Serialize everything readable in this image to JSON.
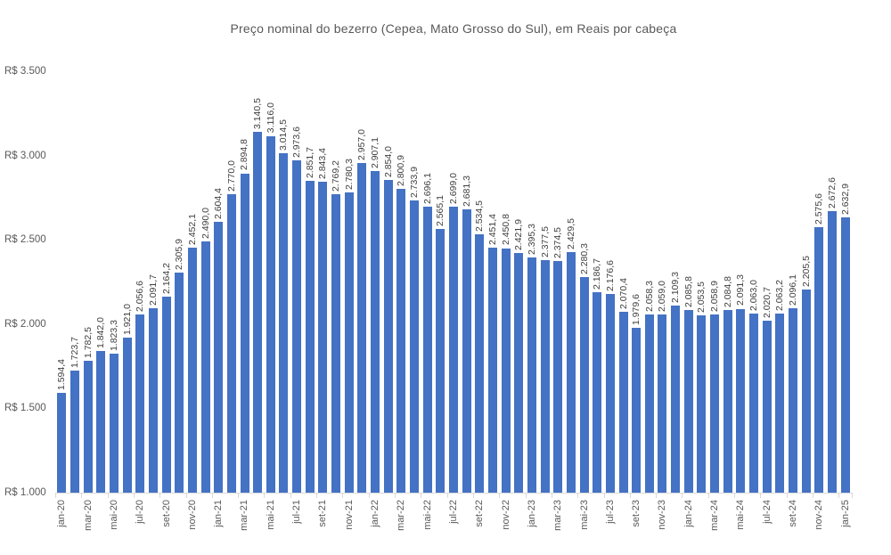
{
  "colors": {
    "bar": "#4472C4",
    "title_text": "#595959",
    "axis_text": "#595959",
    "data_label_text": "#404040",
    "axis_line": "#D9D9D9",
    "background": "#ffffff"
  },
  "chart_data": {
    "type": "bar",
    "title": "Preço nominal do bezerro (Cepea, Mato Grosso do Sul), em Reais por cabeça",
    "xlabel": "",
    "ylabel": "",
    "ylim": [
      1000,
      3500
    ],
    "grid": false,
    "legend": false,
    "x_label_interval": 2,
    "y_axis": [
      {
        "value": 3500,
        "label": "R$ 3.500"
      },
      {
        "value": 3000,
        "label": "R$ 3.000"
      },
      {
        "value": 2500,
        "label": "R$ 2.500"
      },
      {
        "value": 2000,
        "label": "R$ 2.000"
      },
      {
        "value": 1500,
        "label": "R$ 1.500"
      },
      {
        "value": 1000,
        "label": "R$ 1.000"
      }
    ],
    "categories": [
      "jan-20",
      "fev-20",
      "mar-20",
      "abr-20",
      "mai-20",
      "jun-20",
      "jul-20",
      "ago-20",
      "set-20",
      "out-20",
      "nov-20",
      "dez-20",
      "jan-21",
      "fev-21",
      "mar-21",
      "abr-21",
      "mai-21",
      "jun-21",
      "jul-21",
      "ago-21",
      "set-21",
      "out-21",
      "nov-21",
      "dez-21",
      "jan-22",
      "fev-22",
      "mar-22",
      "abr-22",
      "mai-22",
      "jun-22",
      "jul-22",
      "ago-22",
      "set-22",
      "out-22",
      "nov-22",
      "dez-22",
      "jan-23",
      "fev-23",
      "mar-23",
      "abr-23",
      "mai-23",
      "jun-23",
      "jul-23",
      "ago-23",
      "set-23",
      "out-23",
      "nov-23",
      "dez-23",
      "jan-24",
      "fev-24",
      "mar-24",
      "abr-24",
      "mai-24",
      "jun-24",
      "jul-24",
      "ago-24",
      "set-24",
      "out-24",
      "nov-24",
      "dez-24",
      "jan-25"
    ],
    "values": [
      1594.4,
      1723.7,
      1782.5,
      1842.0,
      1823.3,
      1921.0,
      2056.6,
      2091.7,
      2164.2,
      2305.9,
      2452.1,
      2490.0,
      2604.4,
      2770.0,
      2894.8,
      3140.5,
      3116.0,
      3014.5,
      2973.6,
      2851.7,
      2843.4,
      2769.2,
      2780.3,
      2957.0,
      2907.1,
      2854.0,
      2800.9,
      2733.9,
      2696.1,
      2565.1,
      2699.0,
      2681.3,
      2534.5,
      2451.4,
      2450.8,
      2421.9,
      2395.3,
      2377.5,
      2374.5,
      2429.5,
      2280.3,
      2186.7,
      2176.6,
      2070.4,
      1979.6,
      2058.3,
      2059.0,
      2109.3,
      2085.8,
      2053.5,
      2058.9,
      2084.8,
      2091.3,
      2063.0,
      2020.7,
      2063.2,
      2096.1,
      2205.5,
      2575.6,
      2672.6,
      2632.9
    ],
    "value_labels": [
      "1.594,4",
      "1.723,7",
      "1.782,5",
      "1.842,0",
      "1.823,3",
      "1.921,0",
      "2.056,6",
      "2.091,7",
      "2.164,2",
      "2.305,9",
      "2.452,1",
      "2.490,0",
      "2.604,4",
      "2.770,0",
      "2.894,8",
      "3.140,5",
      "3.116,0",
      "3.014,5",
      "2.973,6",
      "2.851,7",
      "2.843,4",
      "2.769,2",
      "2.780,3",
      "2.957,0",
      "2.907,1",
      "2.854,0",
      "2.800,9",
      "2.733,9",
      "2.696,1",
      "2.565,1",
      "2.699,0",
      "2.681,3",
      "2.534,5",
      "2.451,4",
      "2.450,8",
      "2.421,9",
      "2.395,3",
      "2.377,5",
      "2.374,5",
      "2.429,5",
      "2.280,3",
      "2.186,7",
      "2.176,6",
      "2.070,4",
      "1.979,6",
      "2.058,3",
      "2.059,0",
      "2.109,3",
      "2.085,8",
      "2.053,5",
      "2.058,9",
      "2.084,8",
      "2.091,3",
      "2.063,0",
      "2.020,7",
      "2.063,2",
      "2.096,1",
      "2.205,5",
      "2.575,6",
      "2.672,6",
      "2.632,9"
    ]
  }
}
